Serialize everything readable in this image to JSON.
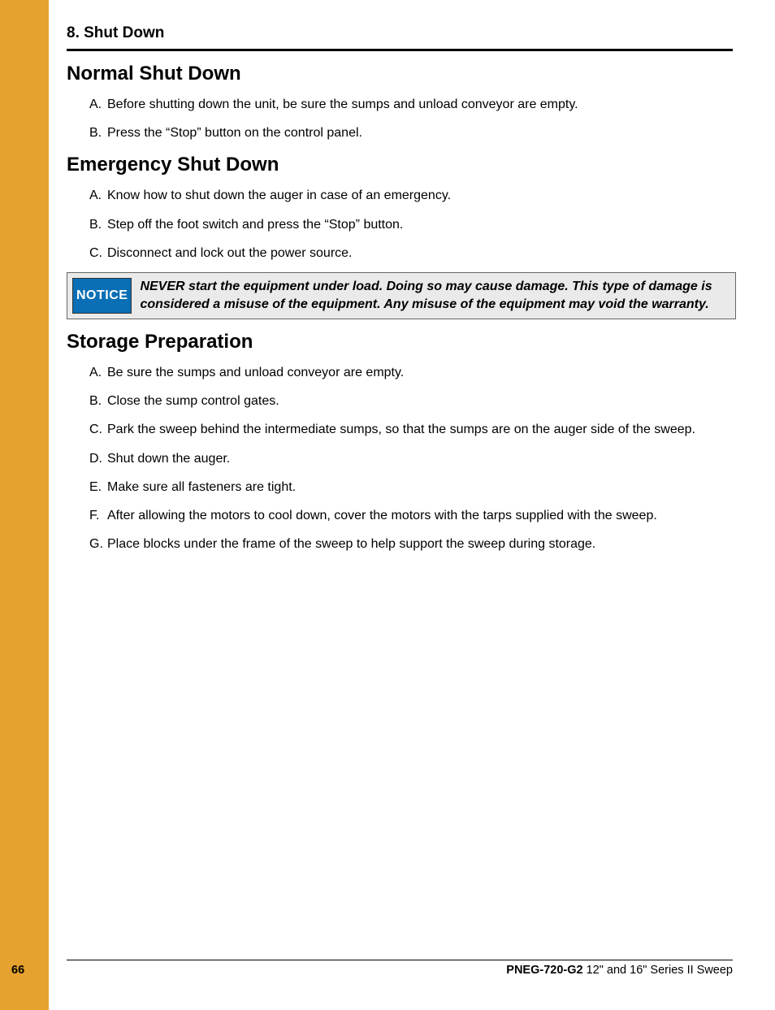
{
  "colors": {
    "sidebar": "#e6a22e",
    "notice_bg": "#eaeaea",
    "notice_badge_bg": "#0a6fb5",
    "notice_badge_fg": "#ffffff",
    "text": "#000000",
    "page_bg": "#ffffff"
  },
  "chapter_title": "8. Shut Down",
  "sections": {
    "normal": {
      "heading": "Normal Shut Down",
      "items": [
        {
          "letter": "A.",
          "text": "Before shutting down the unit, be sure the sumps and unload conveyor are empty."
        },
        {
          "letter": "B.",
          "text": "Press the “Stop” button on the control panel."
        }
      ]
    },
    "emergency": {
      "heading": "Emergency Shut Down",
      "items": [
        {
          "letter": "A.",
          "text": "Know how to shut down the auger in case of an emergency."
        },
        {
          "letter": "B.",
          "text": "Step off the foot switch and press the “Stop” button."
        },
        {
          "letter": "C.",
          "text": "Disconnect and lock out the power source."
        }
      ]
    },
    "notice": {
      "badge": "NOTICE",
      "text": "NEVER start the equipment under load. Doing so may cause damage. This type of damage is considered a misuse of the equipment. Any misuse of the equipment may void the warranty."
    },
    "storage": {
      "heading": "Storage Preparation",
      "items": [
        {
          "letter": "A.",
          "text": "Be sure the sumps and unload conveyor are empty."
        },
        {
          "letter": "B.",
          "text": "Close the sump control gates."
        },
        {
          "letter": "C.",
          "text": "Park the sweep behind the intermediate sumps, so that the sumps are on the auger side of the sweep."
        },
        {
          "letter": "D.",
          "text": "Shut down the auger."
        },
        {
          "letter": "E.",
          "text": "Make sure all fasteners are tight."
        },
        {
          "letter": "F.",
          "text": "After allowing the motors to cool down, cover the motors with the tarps supplied with the sweep."
        },
        {
          "letter": "G.",
          "text": "Place blocks under the frame of the sweep to help support the sweep during storage."
        }
      ]
    }
  },
  "footer": {
    "page_number": "66",
    "doc_code": "PNEG-720-G2",
    "doc_title": " 12\" and 16\" Series II Sweep"
  }
}
